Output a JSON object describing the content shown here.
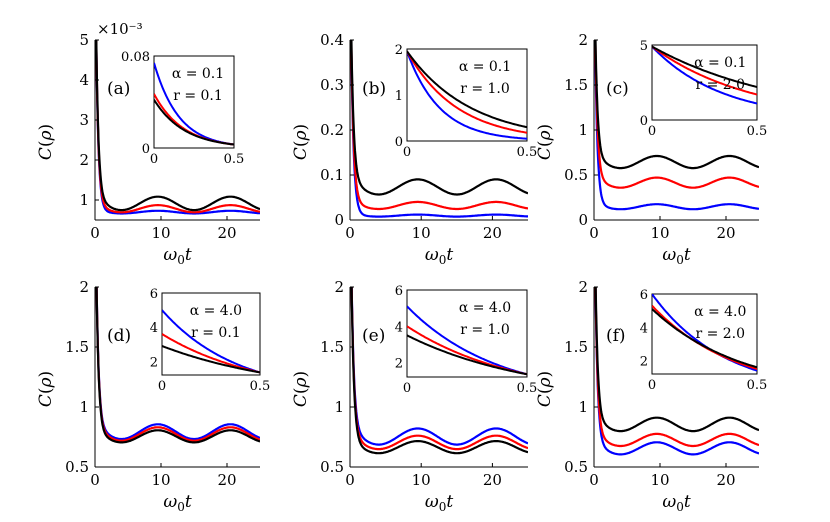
{
  "figure": {
    "xlabel": "ω₀t",
    "ylabel": "C(ρ)",
    "series_colors": [
      "#0000ff",
      "#ff0000",
      "#000000"
    ]
  },
  "chart_data": [
    {
      "panel": "(a)",
      "type": "line",
      "alpha_label": "α = 0.1",
      "r_label": "r = 0.1",
      "title": "",
      "xlabel": "ω₀t",
      "ylabel": "C(ρ)",
      "xlim": [
        0,
        25
      ],
      "ylim": [
        0.5,
        5.0
      ],
      "xticks": [
        "0",
        "10",
        "20"
      ],
      "yticks": [
        1,
        2,
        3,
        4,
        5
      ],
      "ytick_labels": [
        "1",
        "2",
        "3",
        "4",
        "5"
      ],
      "y_scale_label": "×10⁻³",
      "series": [
        {
          "color": "#0000ff",
          "offset": 0.7,
          "amp": 0.06,
          "peak": 5.0
        },
        {
          "color": "#ff0000",
          "offset": 0.79,
          "amp": 0.16,
          "peak": 5.0
        },
        {
          "color": "#000000",
          "offset": 0.93,
          "amp": 0.3,
          "peak": 5.0
        }
      ],
      "inset": {
        "xlim": [
          0,
          0.5
        ],
        "ylim": [
          0,
          0.08
        ],
        "xtick_labels": [
          "0",
          "0.5"
        ],
        "ytick_labels": [
          "0",
          "0.08"
        ],
        "series": [
          {
            "color": "#0000ff",
            "start": 0.074,
            "end": 0.003
          },
          {
            "color": "#ff0000",
            "start": 0.047,
            "end": 0.003
          },
          {
            "color": "#000000",
            "start": 0.042,
            "end": 0.003
          }
        ]
      }
    },
    {
      "panel": "(b)",
      "type": "line",
      "alpha_label": "α = 0.1",
      "r_label": "r = 1.0",
      "title": "",
      "xlabel": "ω₀t",
      "ylabel": "C(ρ)",
      "xlim": [
        0,
        25
      ],
      "ylim": [
        0,
        0.4
      ],
      "xticks": [
        "0",
        "10",
        "20"
      ],
      "yticks": [
        0,
        0.1,
        0.2,
        0.3,
        0.4
      ],
      "ytick_labels": [
        "0",
        "0.1",
        "0.2",
        "0.3",
        "0.4"
      ],
      "series": [
        {
          "color": "#0000ff",
          "offset": 0.01,
          "amp": 0.004,
          "peak": 0.4
        },
        {
          "color": "#ff0000",
          "offset": 0.033,
          "amp": 0.014,
          "peak": 0.4
        },
        {
          "color": "#000000",
          "offset": 0.075,
          "amp": 0.03,
          "peak": 0.4
        }
      ],
      "inset": {
        "xlim": [
          0,
          0.5
        ],
        "ylim": [
          0,
          2
        ],
        "xtick_labels": [
          "0",
          "0.5"
        ],
        "ytick_labels": [
          "0",
          "1",
          "2"
        ],
        "series": [
          {
            "color": "#0000ff",
            "start": 1.95,
            "end": 0.05
          },
          {
            "color": "#ff0000",
            "start": 1.95,
            "end": 0.18
          },
          {
            "color": "#000000",
            "start": 1.95,
            "end": 0.3
          }
        ]
      }
    },
    {
      "panel": "(c)",
      "type": "line",
      "alpha_label": "α = 0.1",
      "r_label": "r = 2.0",
      "title": "",
      "xlabel": "ω₀t",
      "ylabel": "C(ρ)",
      "xlim": [
        0,
        25
      ],
      "ylim": [
        0,
        2
      ],
      "xticks": [
        "0",
        "10",
        "20"
      ],
      "yticks": [
        0,
        0.5,
        1,
        1.5,
        2
      ],
      "ytick_labels": [
        "0",
        "0.5",
        "1",
        "1.5",
        "2"
      ],
      "series": [
        {
          "color": "#0000ff",
          "offset": 0.15,
          "amp": 0.05,
          "peak": 2.0
        },
        {
          "color": "#ff0000",
          "offset": 0.42,
          "amp": 0.1,
          "peak": 2.0
        },
        {
          "color": "#000000",
          "offset": 0.65,
          "amp": 0.12,
          "peak": 2.0
        }
      ],
      "inset": {
        "xlim": [
          0,
          0.5
        ],
        "ylim": [
          0,
          5
        ],
        "xtick_labels": [
          "0",
          "0.5"
        ],
        "ytick_labels": [
          "0",
          "5"
        ],
        "series": [
          {
            "color": "#0000ff",
            "start": 4.9,
            "end": 1.1
          },
          {
            "color": "#ff0000",
            "start": 4.9,
            "end": 1.7
          },
          {
            "color": "#000000",
            "start": 4.9,
            "end": 2.2
          }
        ]
      }
    },
    {
      "panel": "(d)",
      "type": "line",
      "alpha_label": "α = 4.0",
      "r_label": "r = 0.1",
      "title": "",
      "xlabel": "ω₀t",
      "ylabel": "C(ρ)",
      "xlim": [
        0,
        25
      ],
      "ylim": [
        0.5,
        2
      ],
      "xticks": [
        "0",
        "10",
        "20"
      ],
      "yticks": [
        0.5,
        1,
        1.5,
        2
      ],
      "ytick_labels": [
        "0.5",
        "1",
        "1.5",
        "2"
      ],
      "series": [
        {
          "color": "#0000ff",
          "offset": 0.8,
          "amp": 0.11,
          "peak": 2.0
        },
        {
          "color": "#ff0000",
          "offset": 0.78,
          "amp": 0.1,
          "peak": 2.0
        },
        {
          "color": "#000000",
          "offset": 0.76,
          "amp": 0.09,
          "peak": 2.0
        }
      ],
      "inset": {
        "xlim": [
          0,
          0.5
        ],
        "ylim": [
          1.2,
          6
        ],
        "xtick_labels": [
          "0",
          "0.5"
        ],
        "ytick_labels": [
          "2",
          "4",
          "6"
        ],
        "series": [
          {
            "color": "#0000ff",
            "start": 5.0,
            "end": 1.35
          },
          {
            "color": "#ff0000",
            "start": 3.6,
            "end": 1.35
          },
          {
            "color": "#000000",
            "start": 2.9,
            "end": 1.35
          }
        ]
      }
    },
    {
      "panel": "(e)",
      "type": "line",
      "alpha_label": "α = 4.0",
      "r_label": "r = 1.0",
      "title": "",
      "xlabel": "ω₀t",
      "ylabel": "C(ρ)",
      "xlim": [
        0,
        25
      ],
      "ylim": [
        0.5,
        2
      ],
      "xticks": [
        "0",
        "10",
        "20"
      ],
      "yticks": [
        0.5,
        1,
        1.5,
        2
      ],
      "ytick_labels": [
        "0.5",
        "1",
        "1.5",
        "2"
      ],
      "series": [
        {
          "color": "#0000ff",
          "offset": 0.76,
          "amp": 0.12,
          "peak": 2.0
        },
        {
          "color": "#ff0000",
          "offset": 0.71,
          "amp": 0.1,
          "peak": 2.0
        },
        {
          "color": "#000000",
          "offset": 0.67,
          "amp": 0.09,
          "peak": 2.0
        }
      ],
      "inset": {
        "xlim": [
          0,
          0.5
        ],
        "ylim": [
          1.2,
          6
        ],
        "xtick_labels": [
          "0",
          "0.5"
        ],
        "ytick_labels": [
          "2",
          "4",
          "6"
        ],
        "series": [
          {
            "color": "#0000ff",
            "start": 5.1,
            "end": 1.35
          },
          {
            "color": "#ff0000",
            "start": 4.0,
            "end": 1.35
          },
          {
            "color": "#000000",
            "start": 3.5,
            "end": 1.35
          }
        ]
      }
    },
    {
      "panel": "(f)",
      "type": "line",
      "alpha_label": "α = 4.0",
      "r_label": "r = 2.0",
      "title": "",
      "xlabel": "ω₀t",
      "ylabel": "C(ρ)",
      "xlim": [
        0,
        25
      ],
      "ylim": [
        0.5,
        2
      ],
      "xticks": [
        "0",
        "10",
        "20"
      ],
      "yticks": [
        0.5,
        1,
        1.5,
        2
      ],
      "ytick_labels": [
        "0.5",
        "1",
        "1.5",
        "2"
      ],
      "series": [
        {
          "color": "#0000ff",
          "offset": 0.66,
          "amp": 0.09,
          "peak": 2.0
        },
        {
          "color": "#ff0000",
          "offset": 0.73,
          "amp": 0.09,
          "peak": 2.0
        },
        {
          "color": "#000000",
          "offset": 0.86,
          "amp": 0.1,
          "peak": 2.0
        }
      ],
      "inset": {
        "xlim": [
          0,
          0.5
        ],
        "ylim": [
          1.2,
          6
        ],
        "xtick_labels": [
          "0",
          "0.5"
        ],
        "ytick_labels": [
          "2",
          "4",
          "6"
        ],
        "series": [
          {
            "color": "#0000ff",
            "start": 6.0,
            "end": 1.4
          },
          {
            "color": "#ff0000",
            "start": 5.3,
            "end": 1.5
          },
          {
            "color": "#000000",
            "start": 5.1,
            "end": 1.6
          }
        ]
      }
    }
  ]
}
